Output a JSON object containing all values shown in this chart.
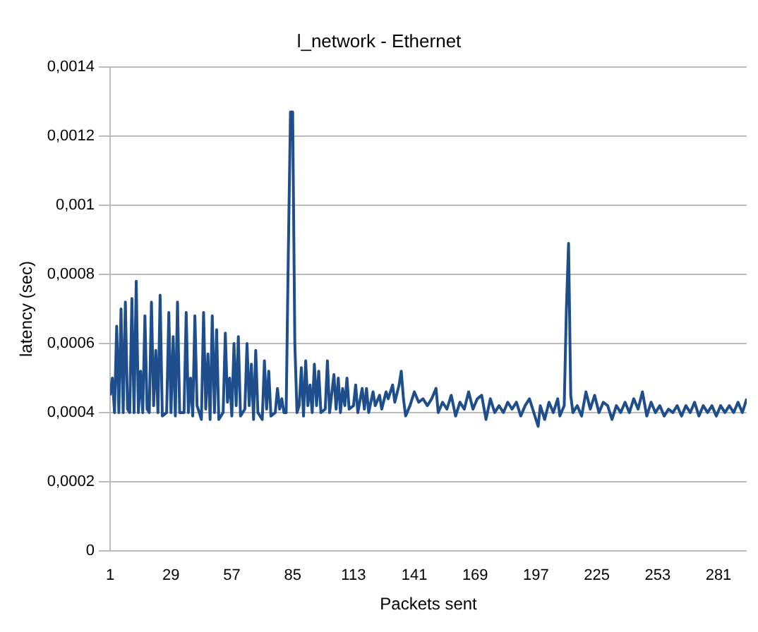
{
  "chart_data": {
    "type": "line",
    "title": "l_network - Ethernet",
    "xlabel": "Packets sent",
    "ylabel": "latency (sec)",
    "xlim": [
      1,
      294
    ],
    "xticks": [
      1,
      29,
      57,
      85,
      113,
      141,
      169,
      197,
      225,
      253,
      281
    ],
    "ylim": [
      0,
      0.0014
    ],
    "yticks": [
      0,
      {
        "value": 0.0002,
        "label": "0,0002"
      },
      {
        "value": 0.0004,
        "label": "0,0004"
      },
      {
        "value": 0.0006,
        "label": "0,0006"
      },
      {
        "value": 0.0008,
        "label": "0,0008"
      },
      {
        "value": 0.001,
        "label": "0,001"
      },
      {
        "value": 0.0012,
        "label": "0,0012"
      },
      {
        "value": 0.0014,
        "label": "0,0014"
      }
    ],
    "grid": "y",
    "legend": false,
    "marker": "none",
    "line_style": "solid",
    "series": [
      {
        "color": "#1f4e8c",
        "x": [
          1,
          2,
          3,
          4,
          5,
          6,
          7,
          8,
          9,
          10,
          11,
          12,
          13,
          14,
          15,
          16,
          17,
          18,
          19,
          20,
          21,
          22,
          23,
          24,
          25,
          27,
          28,
          29,
          30,
          31,
          32,
          33,
          35,
          36,
          37,
          38,
          39,
          40,
          41,
          43,
          44,
          45,
          46,
          47,
          48,
          49,
          50,
          51,
          53,
          54,
          55,
          56,
          57,
          58,
          59,
          60,
          61,
          63,
          64,
          65,
          66,
          67,
          68,
          69,
          71,
          72,
          73,
          74,
          75,
          77,
          78,
          79,
          80,
          81,
          82,
          83,
          84,
          85,
          86,
          87,
          88,
          89,
          90,
          91,
          92,
          93,
          94,
          95,
          96,
          97,
          98,
          100,
          101,
          102,
          104,
          105,
          106,
          107,
          108,
          109,
          110,
          111,
          113,
          114,
          115,
          117,
          118,
          119,
          120,
          122,
          123,
          125,
          126,
          128,
          129,
          131,
          132,
          134,
          135,
          136,
          137,
          139,
          141,
          143,
          145,
          147,
          149,
          151,
          152,
          154,
          156,
          158,
          160,
          162,
          164,
          166,
          168,
          170,
          172,
          174,
          176,
          178,
          180,
          182,
          184,
          186,
          188,
          190,
          192,
          194,
          196,
          198,
          199,
          201,
          203,
          205,
          207,
          208,
          210,
          211,
          212,
          213,
          214,
          216,
          218,
          220,
          222,
          224,
          226,
          228,
          230,
          232,
          234,
          236,
          238,
          240,
          242,
          244,
          246,
          248,
          250,
          252,
          254,
          256,
          258,
          260,
          262,
          264,
          266,
          268,
          270,
          272,
          274,
          276,
          278,
          280,
          282,
          284,
          286,
          288,
          290,
          292,
          294
        ],
        "values": [
          0.00045,
          0.0005,
          0.0004,
          0.00065,
          0.0004,
          0.0007,
          0.0004,
          0.00072,
          0.00041,
          0.0004,
          0.00073,
          0.0004,
          0.00078,
          0.0004,
          0.00052,
          0.0004,
          0.00068,
          0.00041,
          0.0004,
          0.00072,
          0.00042,
          0.00058,
          0.0004,
          0.00074,
          0.00039,
          0.0004,
          0.00069,
          0.0004,
          0.00062,
          0.00039,
          0.00072,
          0.0004,
          0.0004,
          0.00069,
          0.0004,
          0.0005,
          0.00039,
          0.00068,
          0.00042,
          0.00038,
          0.00069,
          0.00041,
          0.00057,
          0.00038,
          0.00068,
          0.0004,
          0.00064,
          0.00038,
          0.0004,
          0.00063,
          0.00043,
          0.0005,
          0.00039,
          0.0006,
          0.00042,
          0.00062,
          0.00039,
          0.00041,
          0.0006,
          0.00042,
          0.00054,
          0.00038,
          0.00058,
          0.0004,
          0.00038,
          0.00055,
          0.00041,
          0.00052,
          0.00039,
          0.0004,
          0.00047,
          0.00041,
          0.00044,
          0.0004,
          0.0004,
          0.00086,
          0.00127,
          0.00127,
          0.0006,
          0.0004,
          0.00042,
          0.00053,
          0.00039,
          0.00055,
          0.00042,
          0.00048,
          0.0004,
          0.00054,
          0.00042,
          0.00052,
          0.0004,
          0.00041,
          0.00055,
          0.0004,
          0.00051,
          0.00041,
          0.0005,
          0.0004,
          0.00047,
          0.00042,
          0.0005,
          0.00041,
          0.00042,
          0.00048,
          0.0004,
          0.00047,
          0.00041,
          0.00047,
          0.0004,
          0.00046,
          0.00042,
          0.00045,
          0.00041,
          0.00046,
          0.00044,
          0.00048,
          0.00043,
          0.00048,
          0.00052,
          0.00044,
          0.00039,
          0.00042,
          0.00046,
          0.00043,
          0.00044,
          0.00042,
          0.00044,
          0.00047,
          0.0004,
          0.00043,
          0.00041,
          0.00045,
          0.00039,
          0.00043,
          0.00041,
          0.00046,
          0.00041,
          0.00044,
          0.00045,
          0.00038,
          0.00044,
          0.0004,
          0.00042,
          0.0004,
          0.00043,
          0.00041,
          0.00043,
          0.00039,
          0.00042,
          0.00044,
          0.0004,
          0.00036,
          0.00042,
          0.00038,
          0.00043,
          0.0004,
          0.00044,
          0.00039,
          0.00042,
          0.0007,
          0.00089,
          0.00045,
          0.0004,
          0.00042,
          0.00039,
          0.00046,
          0.00041,
          0.00045,
          0.0004,
          0.00043,
          0.00042,
          0.00038,
          0.00042,
          0.0004,
          0.00043,
          0.0004,
          0.00044,
          0.00041,
          0.00046,
          0.00039,
          0.00043,
          0.0004,
          0.00042,
          0.00039,
          0.00041,
          0.0004,
          0.00042,
          0.00039,
          0.00042,
          0.0004,
          0.00043,
          0.00039,
          0.00042,
          0.0004,
          0.00042,
          0.00039,
          0.00042,
          0.0004,
          0.00042,
          0.0004,
          0.00043,
          0.0004,
          0.00044
        ]
      }
    ]
  }
}
